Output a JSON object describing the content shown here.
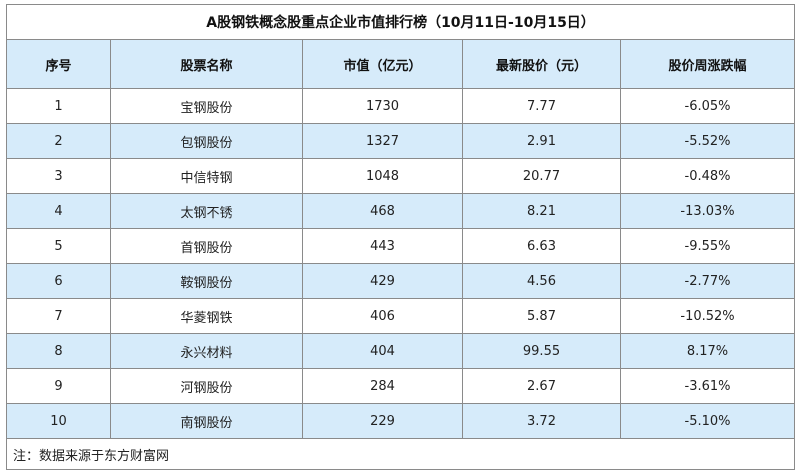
{
  "title": "A股钢铁概念股重点企业市值排行榜（10月11日-10月15日）",
  "headers": [
    "序号",
    "股票名称",
    "市值（亿元）",
    "最新股价（元）",
    "股价周涨跌幅"
  ],
  "rows": [
    [
      "1",
      "宝钢股份",
      "1730",
      "7.77",
      "-6.05%"
    ],
    [
      "2",
      "包钢股份",
      "1327",
      "2.91",
      "-5.52%"
    ],
    [
      "3",
      "中信特钢",
      "1048",
      "20.77",
      "-0.48%"
    ],
    [
      "4",
      "太钢不锈",
      "468",
      "8.21",
      "-13.03%"
    ],
    [
      "5",
      "首钢股份",
      "443",
      "6.63",
      "-9.55%"
    ],
    [
      "6",
      "鞍钢股份",
      "429",
      "4.56",
      "-2.77%"
    ],
    [
      "7",
      "华菱钢铁",
      "406",
      "5.87",
      "-10.52%"
    ],
    [
      "8",
      "永兴材料",
      "404",
      "99.55",
      "8.17%"
    ],
    [
      "9",
      "河钢股份",
      "284",
      "2.67",
      "-3.61%"
    ],
    [
      "10",
      "南钢股份",
      "229",
      "3.72",
      "-5.10%"
    ]
  ],
  "note": "注：数据来源于东方财富网"
}
